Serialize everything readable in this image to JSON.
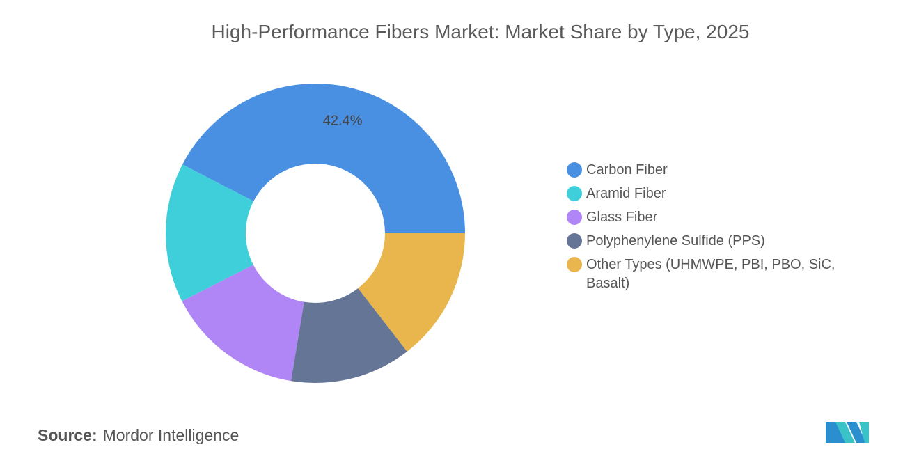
{
  "chart_data": {
    "type": "donut",
    "title": "High-Performance Fibers Market: Market Share by Type, 2025",
    "categories": [
      "Carbon Fiber",
      "Aramid Fiber",
      "Glass Fiber",
      "Polyphenylene Sulfide (PPS)",
      "Other Types (UHMWPE, PBI, PBO, SiC, Basalt)"
    ],
    "values": [
      42.4,
      15.1,
      14.9,
      13.1,
      14.5
    ],
    "value_labels": [
      "42.4%",
      null,
      null,
      null,
      null
    ],
    "colors": [
      "#4a90e2",
      "#3fcfdb",
      "#b085f5",
      "#647596",
      "#e8b64c"
    ],
    "legend": "right"
  },
  "source": {
    "label": "Source:",
    "text": "Mordor Intelligence"
  }
}
